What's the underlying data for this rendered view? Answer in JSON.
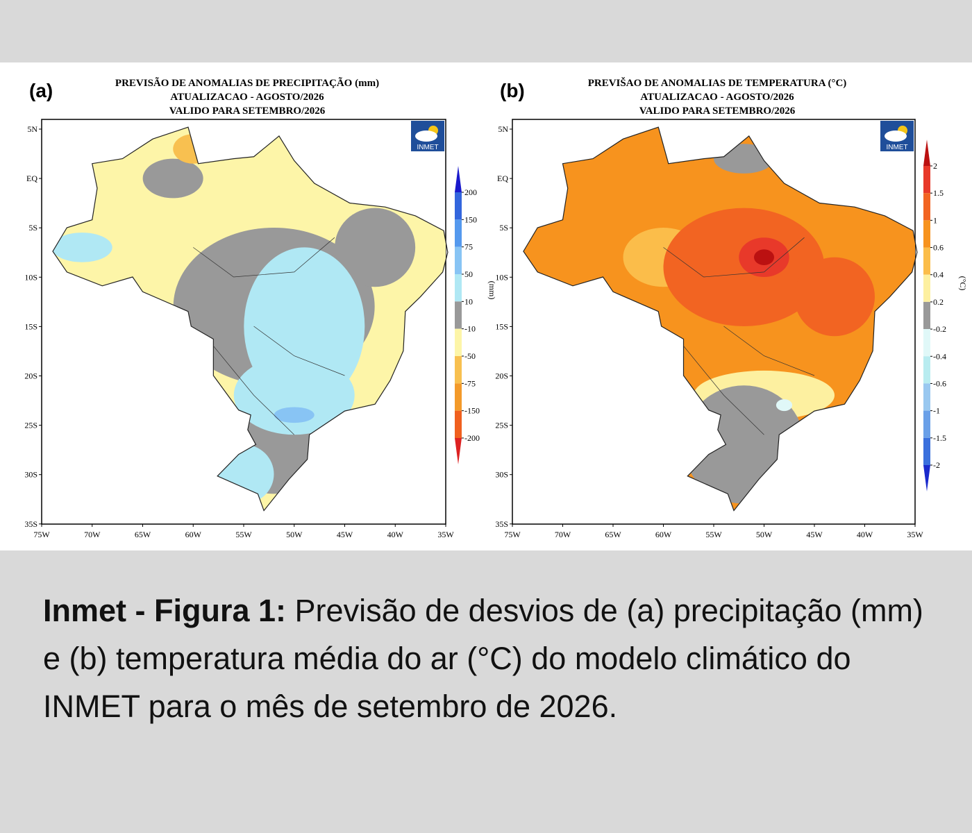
{
  "panels": [
    {
      "label": "(a)",
      "title": [
        "PREVISÃO DE ANOMALIAS DE PRECIPITAÇÃO (mm)",
        "ATUALIZACAO - AGOSTO/2026",
        "VALIDO PARA SETEMBRO/2026"
      ],
      "logo": "INMET",
      "lat_labels": [
        "5N",
        "EQ",
        "5S",
        "10S",
        "15S",
        "20S",
        "25S",
        "30S",
        "35S"
      ],
      "lon_labels": [
        "75W",
        "70W",
        "65W",
        "60W",
        "55W",
        "50W",
        "45W",
        "40W",
        "35W"
      ],
      "colorbar": {
        "unit": "(mm)",
        "labels": [
          "200",
          "150",
          "75",
          "50",
          "10",
          "-10",
          "-50",
          "-75",
          "-150",
          "-200"
        ],
        "colors": [
          "#1a1acc",
          "#3366dd",
          "#5599ee",
          "#88c4f4",
          "#b0e8f4",
          "#999999",
          "#fdf5a8",
          "#f8c050",
          "#f39a2a",
          "#f0601f",
          "#dd2222"
        ]
      }
    },
    {
      "label": "(b)",
      "title": [
        "PREVIŠAO DE ANOMALIAS DE TEMPERATURA (°C)",
        "ATUALIZACAO - AGOSTO/2026",
        "VALIDO PARA SETEMBRO/2026"
      ],
      "logo": "INMET",
      "lat_labels": [
        "5N",
        "EQ",
        "5S",
        "10S",
        "15S",
        "20S",
        "25S",
        "30S",
        "35S"
      ],
      "lon_labels": [
        "75W",
        "70W",
        "65W",
        "60W",
        "55W",
        "50W",
        "45W",
        "40W",
        "35W"
      ],
      "colorbar": {
        "unit": "(°C)",
        "labels": [
          "2",
          "1.5",
          "1",
          "0.6",
          "0.4",
          "0.2",
          "-0.2",
          "-0.4",
          "-0.6",
          "-1",
          "-1.5",
          "-2"
        ],
        "colors": [
          "#bb1111",
          "#e8392a",
          "#f26422",
          "#f7931e",
          "#fbbd4a",
          "#fdf0a0",
          "#999999",
          "#e0f8f8",
          "#b8ecf0",
          "#99c8f0",
          "#6aa0e8",
          "#3a70dd",
          "#1a2acc"
        ]
      }
    }
  ],
  "caption": {
    "bold": "Inmet - Figura 1:",
    "text": "Previsão de desvios de (a) precipitação (mm) e (b) temperatura média do ar (°C) do modelo climático do INMET para o mês de setembro de 2026."
  }
}
